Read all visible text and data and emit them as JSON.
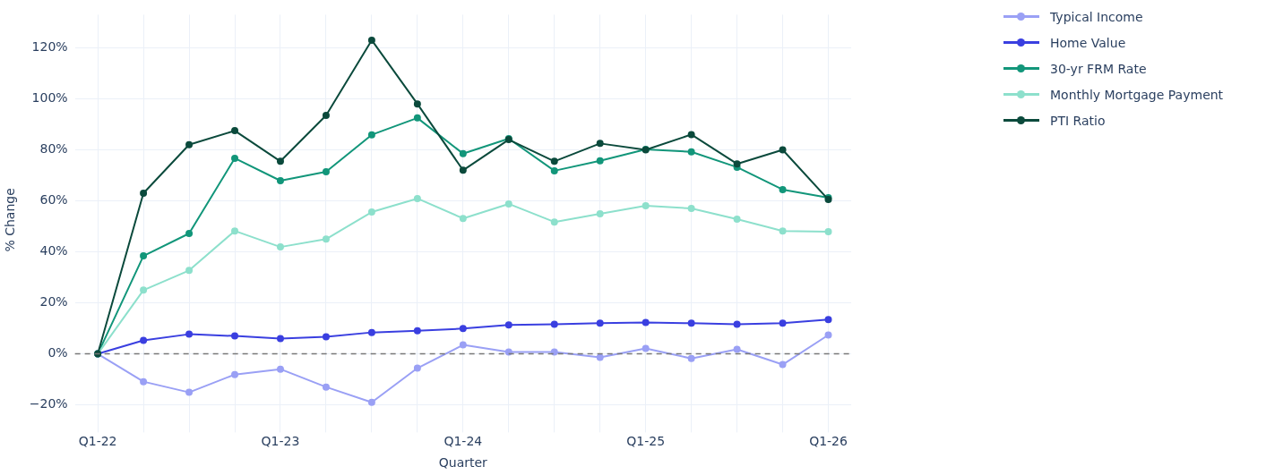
{
  "chart_data": {
    "type": "line",
    "xlabel": "Quarter",
    "ylabel": "% Change",
    "categories": [
      "Q1-22",
      null,
      null,
      null,
      "Q1-23",
      null,
      null,
      null,
      "Q1-24",
      null,
      null,
      null,
      "Q1-25",
      null,
      null,
      null,
      "Q1-26"
    ],
    "series": [
      {
        "name": "Typical Income",
        "color": "#9aa0f5",
        "values": [
          0,
          -10.9,
          -15.1,
          -8.1,
          -6,
          -13,
          -19,
          -5.6,
          3.5,
          0.7,
          0.7,
          -1.4,
          2.1,
          -1.8,
          1.8,
          -4.2,
          7.4
        ]
      },
      {
        "name": "Home Value",
        "color": "#3a3fe0",
        "values": [
          0,
          5.3,
          7.7,
          7,
          6,
          6.7,
          8.4,
          9.1,
          9.9,
          11.3,
          11.6,
          12,
          12.3,
          12,
          11.6,
          12,
          13.4
        ]
      },
      {
        "name": "30-yr FRM Rate",
        "color": "#12967a",
        "values": [
          0,
          38.4,
          47.2,
          76.7,
          67.9,
          71.4,
          85.9,
          92.5,
          78.5,
          84.4,
          71.8,
          75.7,
          80.2,
          79.2,
          73.2,
          64.4,
          61.2
        ]
      },
      {
        "name": "Monthly Mortgage Payment",
        "color": "#8de0cc",
        "values": [
          0,
          25,
          32.7,
          48.2,
          41.9,
          45,
          55.6,
          60.9,
          53.1,
          58.8,
          51.7,
          54.9,
          58.1,
          57,
          52.8,
          48.2,
          47.9
        ]
      },
      {
        "name": "PTI Ratio",
        "color": "#0b4a3c",
        "values": [
          0,
          63,
          82,
          87.5,
          75.5,
          93.5,
          123,
          98,
          72,
          84,
          75.5,
          82.5,
          80,
          86,
          74.5,
          80,
          60.5
        ]
      }
    ],
    "ylim": [
      -28,
      133
    ],
    "yticks": [
      {
        "value": -20,
        "label": "−20%"
      },
      {
        "value": 0,
        "label": "0%"
      },
      {
        "value": 20,
        "label": "20%"
      },
      {
        "value": 40,
        "label": "40%"
      },
      {
        "value": 60,
        "label": "60%"
      },
      {
        "value": 80,
        "label": "80%"
      },
      {
        "value": 100,
        "label": "100%"
      },
      {
        "value": 120,
        "label": "120%"
      }
    ],
    "ref_lines": [
      {
        "axis": "y",
        "value": 0,
        "color": "#777777",
        "line_style": "dashed"
      }
    ],
    "grid": true,
    "legend": "top right",
    "marker": "circle",
    "line_style": "solid"
  }
}
